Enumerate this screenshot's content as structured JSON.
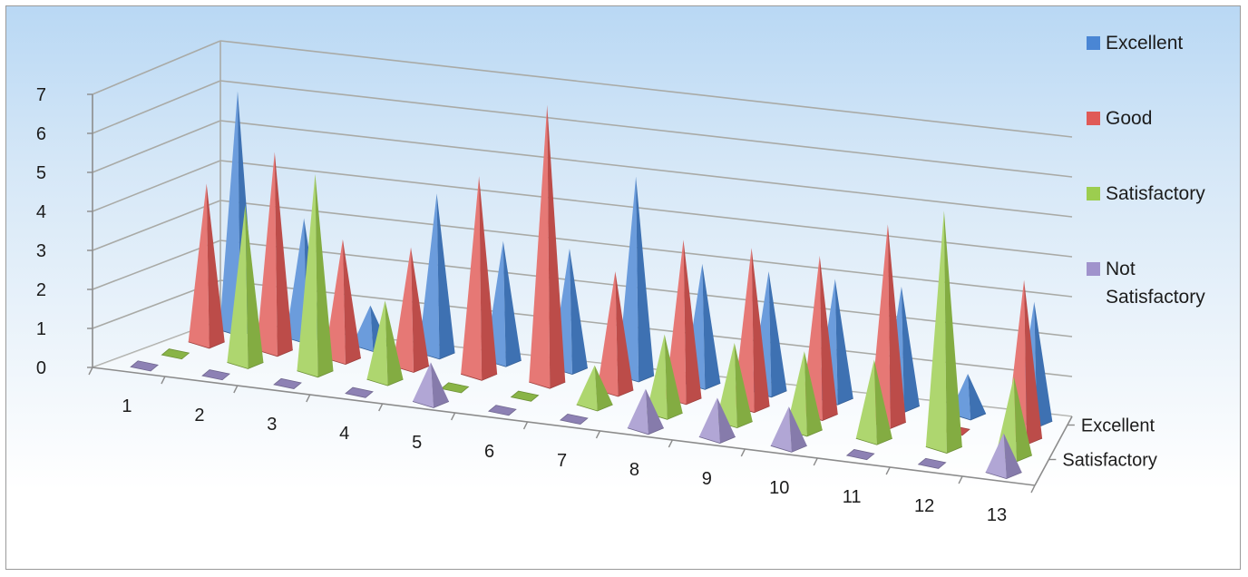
{
  "chart_data": {
    "type": "bar",
    "style": "3d-cone",
    "title": "",
    "xlabel": "",
    "ylabel": "",
    "categories": [
      "1",
      "2",
      "3",
      "4",
      "5",
      "6",
      "7",
      "8",
      "9",
      "10",
      "11",
      "12",
      "13"
    ],
    "depth_tick_labels": [
      "Excellent",
      "Satisfactory"
    ],
    "ylim": [
      0,
      7
    ],
    "y_ticks": [
      "0",
      "1",
      "2",
      "3",
      "4",
      "5",
      "6",
      "7"
    ],
    "grid": true,
    "legend_position": "right",
    "series": [
      {
        "name": "Excellent",
        "color": "#4a86d4",
        "values": [
          6,
          3,
          1,
          4,
          3,
          3,
          5,
          3,
          3,
          3,
          3,
          1,
          3
        ]
      },
      {
        "name": "Good",
        "color": "#e05a57",
        "values": [
          4,
          5,
          3,
          3,
          5,
          7,
          3,
          4,
          4,
          4,
          5,
          0,
          4
        ]
      },
      {
        "name": "Satisfactory",
        "color": "#9ccd4f",
        "values": [
          0,
          4,
          5,
          2,
          0,
          0,
          1,
          2,
          2,
          2,
          2,
          6,
          2
        ]
      },
      {
        "name": "Not Satisfactory",
        "color": "#a093cc",
        "values": [
          0,
          0,
          0,
          0,
          1,
          0,
          0,
          1,
          1,
          1,
          0,
          0,
          1
        ]
      }
    ],
    "legend": [
      {
        "name": "Excellent",
        "lines": [
          "Excellent"
        ]
      },
      {
        "name": "Good",
        "lines": [
          "Good"
        ]
      },
      {
        "name": "Satisfactory",
        "lines": [
          "Satisfactory"
        ]
      },
      {
        "name": "Not Satisfactory",
        "lines": [
          "Not",
          "Satisfactory"
        ]
      }
    ]
  }
}
